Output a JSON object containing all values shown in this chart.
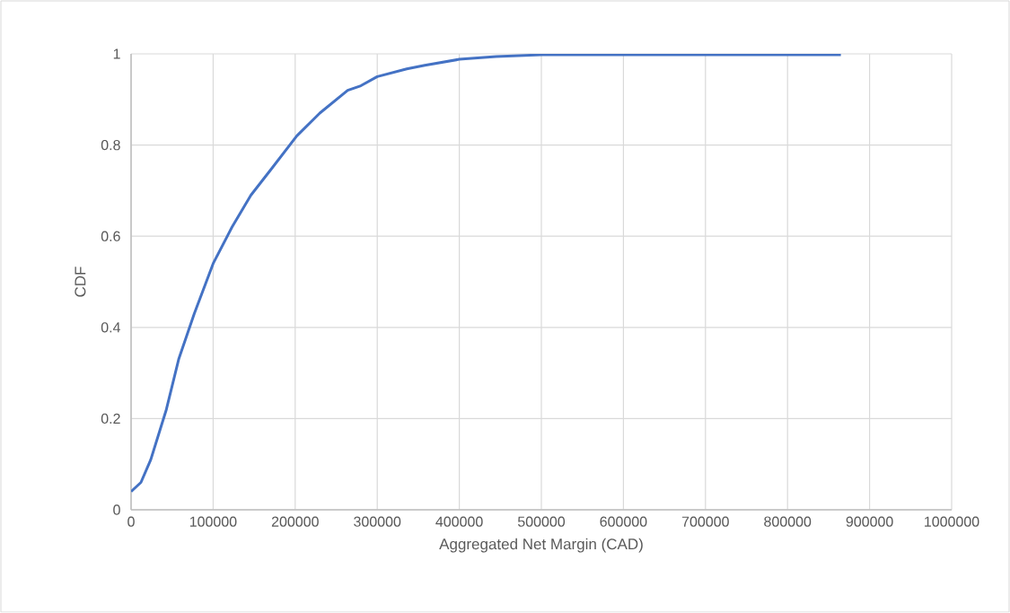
{
  "chart_data": {
    "type": "line",
    "xlabel": "Aggregated Net Margin (CAD)",
    "ylabel": "CDF",
    "x": [
      0,
      12000,
      24000,
      43000,
      58000,
      77000,
      100000,
      123000,
      146000,
      172000,
      202000,
      230000,
      264000,
      280000,
      300000,
      336000,
      358000,
      400000,
      445000,
      500000,
      865000
    ],
    "series": [
      {
        "color": "#4472c4",
        "values": [
          0.04,
          0.06,
          0.11,
          0.22,
          0.33,
          0.43,
          0.54,
          0.62,
          0.69,
          0.75,
          0.82,
          0.87,
          0.92,
          0.93,
          0.95,
          0.967,
          0.975,
          0.988,
          0.994,
          0.998,
          0.998
        ]
      }
    ],
    "xlim": [
      0,
      1000000
    ],
    "ylim": [
      0,
      1
    ],
    "xticks": [
      0,
      100000,
      200000,
      300000,
      400000,
      500000,
      600000,
      700000,
      800000,
      900000,
      1000000
    ],
    "yticks": [
      0,
      0.2,
      0.4,
      0.6,
      0.8,
      1
    ],
    "grid": true,
    "marker": "none",
    "line_style": "solid"
  }
}
